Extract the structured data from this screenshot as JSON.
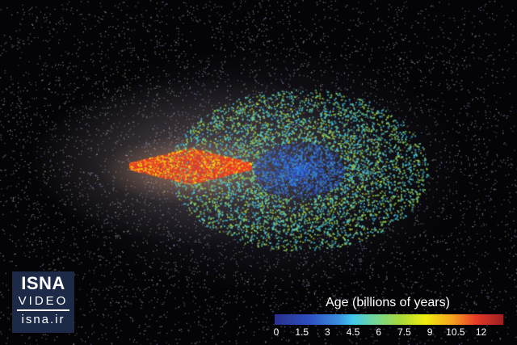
{
  "logo": {
    "line1": "ISNA",
    "line2": "VIDEO",
    "line3": "isna.ir"
  },
  "colorbar": {
    "title": "Age (billions of years)",
    "ticks": [
      "0",
      "1.5",
      "3",
      "4.5",
      "6",
      "7.5",
      "9",
      "10.5",
      "12"
    ],
    "range": [
      0,
      13.3
    ],
    "colors": [
      "#2a2f8c",
      "#2d4fc0",
      "#3a8fe0",
      "#40c8ee",
      "#6fd6a0",
      "#a8d83a",
      "#f0ee10",
      "#f6a020",
      "#e83a28",
      "#9b1e22"
    ]
  }
}
